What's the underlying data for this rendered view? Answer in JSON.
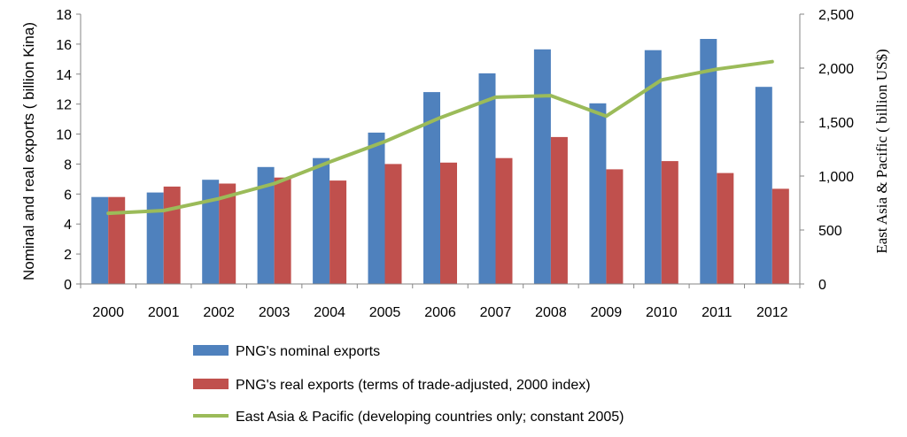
{
  "chart_data": {
    "type": "bar",
    "categories": [
      "2000",
      "2001",
      "2002",
      "2003",
      "2004",
      "2005",
      "2006",
      "2007",
      "2008",
      "2009",
      "2010",
      "2011",
      "2012"
    ],
    "series": [
      {
        "name": "PNG's nominal exports",
        "type": "bar",
        "axis": "left",
        "color": "#4F81BD",
        "values": [
          5.8,
          6.1,
          6.95,
          7.8,
          8.4,
          10.1,
          12.8,
          14.05,
          15.65,
          12.05,
          15.6,
          16.35,
          13.15
        ]
      },
      {
        "name": "PNG's real exports (terms of trade-adjusted, 2000 index)",
        "type": "bar",
        "axis": "left",
        "color": "#C0504D",
        "values": [
          5.8,
          6.5,
          6.7,
          7.1,
          6.9,
          8.0,
          8.1,
          8.4,
          9.8,
          7.65,
          8.2,
          7.4,
          6.35
        ]
      },
      {
        "name": "East Asia & Pacific (developing countries only; constant 2005)",
        "type": "line",
        "axis": "right",
        "color": "#9BBB59",
        "values": [
          655,
          680,
          790,
          930,
          1130,
          1320,
          1540,
          1730,
          1745,
          1555,
          1890,
          1990,
          2060
        ]
      }
    ],
    "ylabel": "Nominal and real exports ( billion Kina)",
    "y2label": "East Asia & Pacific ( billion US$)",
    "ylim": [
      0,
      18
    ],
    "y2lim": [
      0,
      2500
    ],
    "yticks": [
      "0",
      "2",
      "4",
      "6",
      "8",
      "10",
      "12",
      "14",
      "16",
      "18"
    ],
    "y2ticks": [
      "0",
      "500",
      "1,000",
      "1,500",
      "2,000",
      "2,500"
    ],
    "grid": false,
    "legend_position": "bottom"
  }
}
